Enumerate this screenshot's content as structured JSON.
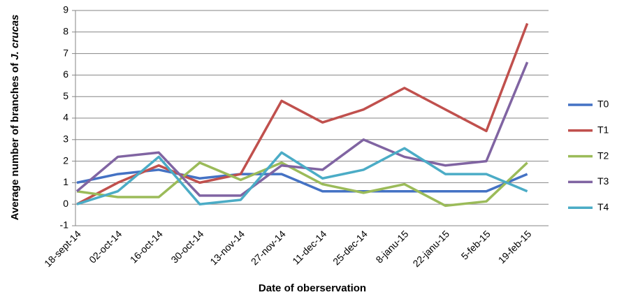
{
  "chart_data": {
    "type": "line",
    "y_label": "Average number of branches of ",
    "y_label_italic": "J. crucas",
    "x_label": "Date of oberservation",
    "categories": [
      "18-sept-14",
      "02-oct-14",
      "16-oct-14",
      "30-oct-14",
      "13-nov-14",
      "27-nov-14",
      "11-dec-14",
      "25-dec-14",
      "8-janu-15",
      "22-janu-15",
      "5-feb-15",
      "19-feb-15"
    ],
    "series": [
      {
        "name": "T0",
        "color": "#4472c4",
        "values": [
          1.0,
          1.4,
          1.6,
          1.2,
          1.4,
          1.4,
          0.6,
          0.6,
          0.6,
          0.6,
          0.6,
          1.4
        ]
      },
      {
        "name": "T1",
        "color": "#c0504d",
        "values": [
          0,
          1.0,
          1.8,
          1.0,
          1.4,
          4.8,
          3.8,
          4.4,
          5.4,
          4.4,
          3.4,
          8.4
        ]
      },
      {
        "name": "T2",
        "color": "#9bbb59",
        "values": [
          0.6,
          0.33,
          0.33,
          1.93,
          1.13,
          1.93,
          0.93,
          0.53,
          0.93,
          -0.07,
          0.13,
          1.93
        ]
      },
      {
        "name": "T3",
        "color": "#8064a2",
        "values": [
          0.6,
          2.2,
          2.4,
          0.4,
          0.4,
          1.8,
          1.6,
          3.0,
          2.2,
          1.8,
          2.0,
          6.6
        ]
      },
      {
        "name": "T4",
        "color": "#4bacc6",
        "values": [
          0,
          0.6,
          2.2,
          0,
          0.2,
          2.4,
          1.2,
          1.6,
          2.6,
          1.4,
          1.4,
          0.6
        ]
      }
    ],
    "ylim": [
      -1,
      9
    ],
    "yticks": [
      -1,
      0,
      1,
      2,
      3,
      4,
      5,
      6,
      7,
      8,
      9
    ],
    "grid": true,
    "legend": "right"
  }
}
